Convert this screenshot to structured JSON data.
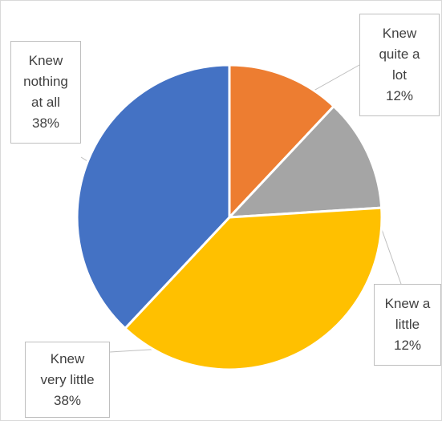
{
  "chart_data": {
    "type": "pie",
    "title": "",
    "slices": [
      {
        "label_lines": [
          "Knew",
          "quite a",
          "lot"
        ],
        "label": "Knew quite a lot",
        "value": 12,
        "value_text": "12%",
        "color": "#ED7D31"
      },
      {
        "label_lines": [
          "Knew a",
          "little"
        ],
        "label": "Knew a little",
        "value": 12,
        "value_text": "12%",
        "color": "#A5A5A5"
      },
      {
        "label_lines": [
          "Knew",
          "very little"
        ],
        "label": "Knew very little",
        "value": 38,
        "value_text": "38%",
        "color": "#FFC000"
      },
      {
        "label_lines": [
          "Knew",
          "nothing",
          "at all"
        ],
        "label": "Knew nothing at all",
        "value": 38,
        "value_text": "38%",
        "color": "#4472C4"
      }
    ],
    "start_angle": "12 o'clock",
    "direction": "clockwise",
    "legend": "none",
    "data_labels": "callouts"
  }
}
